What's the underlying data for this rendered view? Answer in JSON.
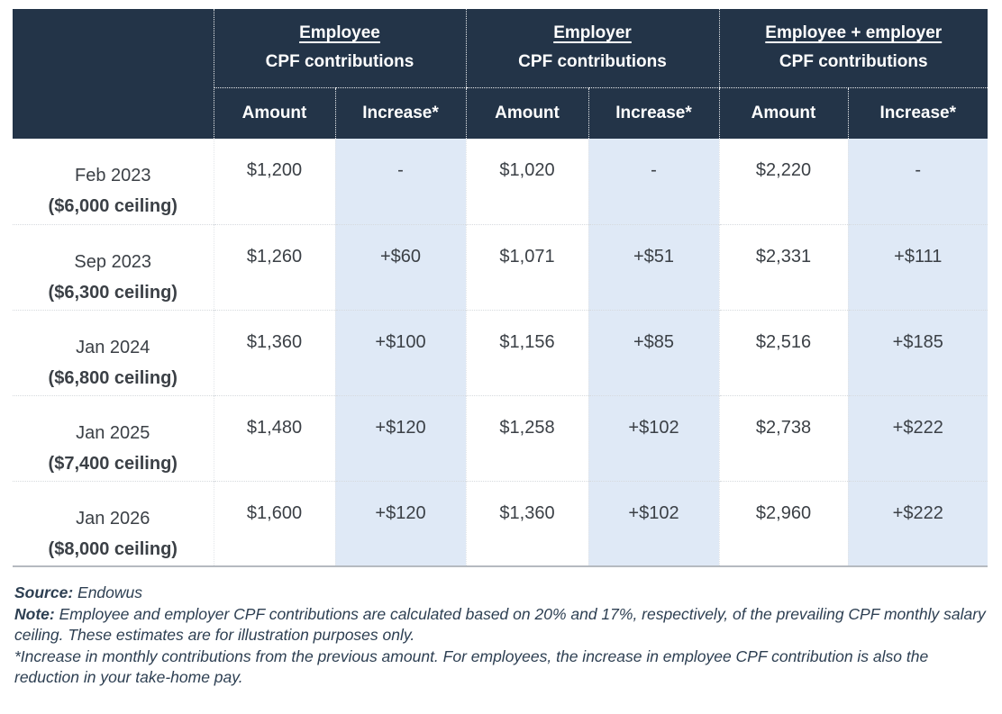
{
  "chart_data": {
    "type": "table",
    "column_groups": [
      {
        "title": "Employee",
        "subtitle": "CPF contributions"
      },
      {
        "title": "Employer",
        "subtitle": "CPF contributions"
      },
      {
        "title": "Employee + employer",
        "subtitle": "CPF contributions"
      }
    ],
    "subheaders": {
      "amount": "Amount",
      "increase": "Increase*"
    },
    "rows": [
      {
        "period": "Feb 2023",
        "ceiling": "($6,000 ceiling)",
        "values": [
          "$1,200",
          "-",
          "$1,020",
          "-",
          "$2,220",
          "-"
        ]
      },
      {
        "period": "Sep 2023",
        "ceiling": "($6,300 ceiling)",
        "values": [
          "$1,260",
          "+$60",
          "$1,071",
          "+$51",
          "$2,331",
          "+$111"
        ]
      },
      {
        "period": "Jan 2024",
        "ceiling": "($6,800 ceiling)",
        "values": [
          "$1,360",
          "+$100",
          "$1,156",
          "+$85",
          "$2,516",
          "+$185"
        ]
      },
      {
        "period": "Jan 2025",
        "ceiling": "($7,400 ceiling)",
        "values": [
          "$1,480",
          "+$120",
          "$1,258",
          "+$102",
          "$2,738",
          "+$222"
        ]
      },
      {
        "period": "Jan 2026",
        "ceiling": "($8,000 ceiling)",
        "values": [
          "$1,600",
          "+$120",
          "$1,360",
          "+$102",
          "$2,960",
          "+$222"
        ]
      }
    ],
    "layout": {
      "header_bg": "#233448",
      "increase_column_bg": "#dfe9f6",
      "grid": "dotted"
    }
  },
  "footer": {
    "source_label": "Source:",
    "source_value": " Endowus",
    "note_label": "Note:",
    "note_value": " Employee and employer CPF contributions are calculated based on 20% and 17%, respectively, of the prevailing CPF monthly salary ceiling. These estimates are for illustration purposes only.",
    "asterisk_note": "*Increase in monthly contributions from the previous amount. For employees, the increase in employee CPF contribution is also the reduction in your take-home pay."
  }
}
